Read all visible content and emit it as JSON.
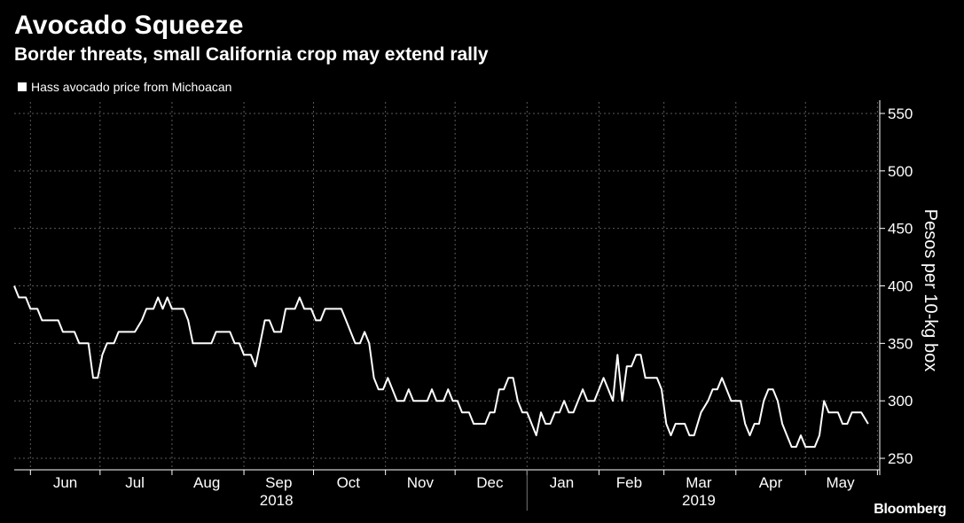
{
  "header": {
    "title": "Avocado Squeeze",
    "subtitle": "Border threats, small California crop may extend rally"
  },
  "brand": "Bloomberg",
  "colors": {
    "background": "#000000",
    "line": "#ffffff",
    "grid": "#5a5a5a"
  },
  "chart_data": {
    "type": "line",
    "title": "Avocado Squeeze",
    "subtitle": "Border threats, small California crop may extend rally",
    "ylabel": "Pesos per 10-kg box",
    "ylim": [
      240,
      560
    ],
    "yticks": [
      250,
      300,
      350,
      400,
      450,
      500,
      550
    ],
    "y_axis_side": "right",
    "xlim": [
      "2018-05-25",
      "2019-06-02"
    ],
    "x_month_labels": [
      {
        "label": "Jun",
        "date": "2018-06-16"
      },
      {
        "label": "Jul",
        "date": "2018-07-16"
      },
      {
        "label": "Aug",
        "date": "2018-08-16"
      },
      {
        "label": "Sep",
        "date": "2018-09-16"
      },
      {
        "label": "Oct",
        "date": "2018-10-16"
      },
      {
        "label": "Nov",
        "date": "2018-11-16"
      },
      {
        "label": "Dec",
        "date": "2018-12-16"
      },
      {
        "label": "Jan",
        "date": "2019-01-16"
      },
      {
        "label": "Feb",
        "date": "2019-02-14"
      },
      {
        "label": "Mar",
        "date": "2019-03-16"
      },
      {
        "label": "Apr",
        "date": "2019-04-16"
      },
      {
        "label": "May",
        "date": "2019-05-16"
      }
    ],
    "x_year_labels": [
      {
        "label": "2018",
        "date": "2018-09-15"
      },
      {
        "label": "2019",
        "date": "2019-03-16"
      }
    ],
    "grid": true,
    "legend": "top-left",
    "series": [
      {
        "name": "Hass avocado price from Michoacan",
        "points": [
          [
            "2018-05-25",
            400
          ],
          [
            "2018-05-27",
            390
          ],
          [
            "2018-05-30",
            390
          ],
          [
            "2018-06-01",
            380
          ],
          [
            "2018-06-04",
            380
          ],
          [
            "2018-06-06",
            370
          ],
          [
            "2018-06-13",
            370
          ],
          [
            "2018-06-15",
            360
          ],
          [
            "2018-06-20",
            360
          ],
          [
            "2018-06-22",
            350
          ],
          [
            "2018-06-26",
            350
          ],
          [
            "2018-06-28",
            320
          ],
          [
            "2018-06-30",
            320
          ],
          [
            "2018-07-02",
            340
          ],
          [
            "2018-07-04",
            350
          ],
          [
            "2018-07-07",
            350
          ],
          [
            "2018-07-09",
            360
          ],
          [
            "2018-07-16",
            360
          ],
          [
            "2018-07-19",
            370
          ],
          [
            "2018-07-21",
            380
          ],
          [
            "2018-07-24",
            380
          ],
          [
            "2018-07-26",
            390
          ],
          [
            "2018-07-28",
            380
          ],
          [
            "2018-07-30",
            390
          ],
          [
            "2018-08-01",
            380
          ],
          [
            "2018-08-06",
            380
          ],
          [
            "2018-08-08",
            370
          ],
          [
            "2018-08-10",
            350
          ],
          [
            "2018-08-18",
            350
          ],
          [
            "2018-08-20",
            360
          ],
          [
            "2018-08-26",
            360
          ],
          [
            "2018-08-28",
            350
          ],
          [
            "2018-08-30",
            350
          ],
          [
            "2018-09-01",
            340
          ],
          [
            "2018-09-04",
            340
          ],
          [
            "2018-09-06",
            330
          ],
          [
            "2018-09-08",
            350
          ],
          [
            "2018-09-10",
            370
          ],
          [
            "2018-09-12",
            370
          ],
          [
            "2018-09-14",
            360
          ],
          [
            "2018-09-17",
            360
          ],
          [
            "2018-09-19",
            380
          ],
          [
            "2018-09-23",
            380
          ],
          [
            "2018-09-25",
            390
          ],
          [
            "2018-09-27",
            380
          ],
          [
            "2018-09-30",
            380
          ],
          [
            "2018-10-02",
            370
          ],
          [
            "2018-10-04",
            370
          ],
          [
            "2018-10-06",
            380
          ],
          [
            "2018-10-13",
            380
          ],
          [
            "2018-10-15",
            370
          ],
          [
            "2018-10-17",
            360
          ],
          [
            "2018-10-19",
            350
          ],
          [
            "2018-10-21",
            350
          ],
          [
            "2018-10-23",
            360
          ],
          [
            "2018-10-25",
            350
          ],
          [
            "2018-10-27",
            320
          ],
          [
            "2018-10-29",
            310
          ],
          [
            "2018-10-31",
            310
          ],
          [
            "2018-11-02",
            320
          ],
          [
            "2018-11-04",
            310
          ],
          [
            "2018-11-06",
            300
          ],
          [
            "2018-11-09",
            300
          ],
          [
            "2018-11-11",
            310
          ],
          [
            "2018-11-13",
            300
          ],
          [
            "2018-11-19",
            300
          ],
          [
            "2018-11-21",
            310
          ],
          [
            "2018-11-23",
            300
          ],
          [
            "2018-11-26",
            300
          ],
          [
            "2018-11-28",
            310
          ],
          [
            "2018-11-30",
            300
          ],
          [
            "2018-12-02",
            300
          ],
          [
            "2018-12-04",
            290
          ],
          [
            "2018-12-07",
            290
          ],
          [
            "2018-12-09",
            280
          ],
          [
            "2018-12-14",
            280
          ],
          [
            "2018-12-16",
            290
          ],
          [
            "2018-12-18",
            290
          ],
          [
            "2018-12-20",
            310
          ],
          [
            "2018-12-22",
            310
          ],
          [
            "2018-12-24",
            320
          ],
          [
            "2018-12-26",
            320
          ],
          [
            "2018-12-28",
            300
          ],
          [
            "2018-12-30",
            290
          ],
          [
            "2019-01-01",
            290
          ],
          [
            "2019-01-03",
            280
          ],
          [
            "2019-01-05",
            270
          ],
          [
            "2019-01-07",
            290
          ],
          [
            "2019-01-09",
            280
          ],
          [
            "2019-01-11",
            280
          ],
          [
            "2019-01-13",
            290
          ],
          [
            "2019-01-15",
            290
          ],
          [
            "2019-01-17",
            300
          ],
          [
            "2019-01-19",
            290
          ],
          [
            "2019-01-21",
            290
          ],
          [
            "2019-01-23",
            300
          ],
          [
            "2019-01-25",
            310
          ],
          [
            "2019-01-27",
            300
          ],
          [
            "2019-01-30",
            300
          ],
          [
            "2019-02-01",
            310
          ],
          [
            "2019-02-03",
            320
          ],
          [
            "2019-02-05",
            310
          ],
          [
            "2019-02-07",
            300
          ],
          [
            "2019-02-09",
            340
          ],
          [
            "2019-02-11",
            300
          ],
          [
            "2019-02-13",
            330
          ],
          [
            "2019-02-15",
            330
          ],
          [
            "2019-02-17",
            340
          ],
          [
            "2019-02-19",
            340
          ],
          [
            "2019-02-21",
            320
          ],
          [
            "2019-02-26",
            320
          ],
          [
            "2019-02-28",
            310
          ],
          [
            "2019-03-02",
            280
          ],
          [
            "2019-03-04",
            270
          ],
          [
            "2019-03-06",
            280
          ],
          [
            "2019-03-10",
            280
          ],
          [
            "2019-03-12",
            270
          ],
          [
            "2019-03-14",
            270
          ],
          [
            "2019-03-17",
            290
          ],
          [
            "2019-03-20",
            300
          ],
          [
            "2019-03-22",
            310
          ],
          [
            "2019-03-24",
            310
          ],
          [
            "2019-03-26",
            320
          ],
          [
            "2019-03-28",
            310
          ],
          [
            "2019-03-30",
            300
          ],
          [
            "2019-04-03",
            300
          ],
          [
            "2019-04-05",
            280
          ],
          [
            "2019-04-07",
            270
          ],
          [
            "2019-04-09",
            280
          ],
          [
            "2019-04-11",
            280
          ],
          [
            "2019-04-13",
            300
          ],
          [
            "2019-04-15",
            310
          ],
          [
            "2019-04-17",
            310
          ],
          [
            "2019-04-19",
            300
          ],
          [
            "2019-04-21",
            280
          ],
          [
            "2019-04-23",
            270
          ],
          [
            "2019-04-25",
            260
          ],
          [
            "2019-04-27",
            260
          ],
          [
            "2019-04-29",
            270
          ],
          [
            "2019-05-01",
            260
          ],
          [
            "2019-05-05",
            260
          ],
          [
            "2019-05-07",
            270
          ],
          [
            "2019-05-09",
            300
          ],
          [
            "2019-05-11",
            290
          ],
          [
            "2019-05-15",
            290
          ],
          [
            "2019-05-17",
            280
          ],
          [
            "2019-05-19",
            280
          ],
          [
            "2019-05-21",
            290
          ],
          [
            "2019-05-25",
            290
          ],
          [
            "2019-05-28",
            280
          ]
        ]
      }
    ]
  }
}
